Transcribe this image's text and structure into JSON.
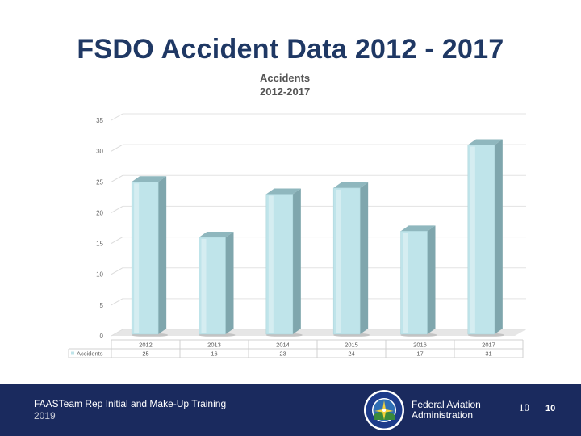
{
  "slide": {
    "title": "FSDO Accident Data 2012 - 2017"
  },
  "chart_data": {
    "type": "bar",
    "title_line1": "Accidents",
    "title_line2": "2012-2017",
    "categories": [
      "2012",
      "2013",
      "2014",
      "2015",
      "2016",
      "2017"
    ],
    "series": [
      {
        "name": "Accidents",
        "values": [
          25,
          16,
          23,
          24,
          17,
          31
        ]
      }
    ],
    "ylim": [
      0,
      35
    ],
    "yticks": [
      0,
      5,
      10,
      15,
      20,
      25,
      30,
      35
    ],
    "grid": true,
    "data_table": true,
    "bar_color": "#bfe4ea"
  },
  "footer": {
    "line1": "FAASTeam Rep Initial and Make-Up Training",
    "line2": "2019",
    "agency_line1": "Federal Aviation",
    "agency_line2": "Administration",
    "page_number_a": "10",
    "page_number_b": "10",
    "background": "#1a2a5e"
  }
}
